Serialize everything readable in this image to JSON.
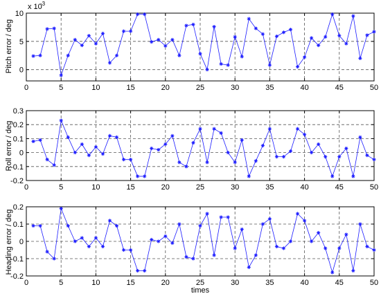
{
  "chart_data": [
    {
      "type": "line",
      "ylabel": "Pitch error / deg",
      "xlabel": "",
      "xlim": [
        0,
        50
      ],
      "ylim": [
        -0.002,
        0.01
      ],
      "multiplier_base": "x 10",
      "multiplier_exp": "-3",
      "xticks": [
        "0",
        "5",
        "10",
        "15",
        "20",
        "25",
        "30",
        "35",
        "40",
        "45",
        "50"
      ],
      "yticks": [
        {
          "v": 0.01,
          "label": "10"
        },
        {
          "v": 0.005,
          "label": "5"
        },
        {
          "v": 0,
          "label": "0"
        }
      ],
      "grid": "dashed",
      "marker": "asterisk",
      "color": "#1a1aff",
      "series": [
        {
          "values": [
            0.0024,
            0.0025,
            0.0072,
            0.0073,
            -0.001,
            0.0025,
            0.0053,
            0.0043,
            0.006,
            0.0046,
            0.0064,
            0.0012,
            0.0025,
            0.0068,
            0.0068,
            0.0098,
            0.0098,
            0.0049,
            0.0053,
            0.0042,
            0.0053,
            0.0025,
            0.0078,
            0.008,
            0.0028,
            0.0,
            0.0076,
            0.001,
            0.0008,
            0.0058,
            0.0023,
            0.009,
            0.0073,
            0.0063,
            0.0008,
            0.0059,
            0.0066,
            0.0071,
            0.0005,
            0.0022,
            0.0056,
            0.0043,
            0.0058,
            0.0098,
            0.006,
            0.0046,
            0.0095,
            0.002,
            0.0061,
            0.0067
          ]
        }
      ]
    },
    {
      "type": "line",
      "ylabel": "Roll error / deg",
      "xlabel": "",
      "xlim": [
        0,
        50
      ],
      "ylim": [
        -0.2,
        0.3
      ],
      "xticks": [
        "0",
        "5",
        "10",
        "15",
        "20",
        "25",
        "30",
        "35",
        "40",
        "45",
        "50"
      ],
      "yticks": [
        {
          "v": 0.3,
          "label": "0.3"
        },
        {
          "v": 0.2,
          "label": "0.2"
        },
        {
          "v": 0.1,
          "label": "0.1"
        },
        {
          "v": 0,
          "label": "0"
        },
        {
          "v": -0.1,
          "label": "-0.1"
        },
        {
          "v": -0.2,
          "label": "-0.2"
        }
      ],
      "grid": "dashed",
      "marker": "asterisk",
      "color": "#1a1aff",
      "series": [
        {
          "values": [
            0.08,
            0.09,
            -0.05,
            -0.09,
            0.23,
            0.11,
            0.0,
            0.06,
            -0.02,
            0.04,
            -0.01,
            0.12,
            0.11,
            -0.05,
            -0.05,
            -0.17,
            -0.17,
            0.03,
            0.02,
            0.06,
            0.12,
            -0.07,
            -0.1,
            0.07,
            0.17,
            -0.07,
            0.17,
            0.14,
            0.0,
            -0.07,
            0.09,
            -0.17,
            -0.06,
            0.05,
            0.17,
            -0.03,
            -0.03,
            0.01,
            0.17,
            0.13,
            0.0,
            0.06,
            -0.03,
            -0.17,
            -0.03,
            0.03,
            -0.17,
            0.11,
            -0.02,
            -0.05
          ]
        }
      ]
    },
    {
      "type": "line",
      "ylabel": "Heading error / deg",
      "xlabel": "times",
      "xlim": [
        0,
        50
      ],
      "ylim": [
        -0.2,
        0.2
      ],
      "xticks": [
        "0",
        "5",
        "10",
        "15",
        "20",
        "25",
        "30",
        "35",
        "40",
        "45",
        "50"
      ],
      "yticks": [
        {
          "v": 0.2,
          "label": "0.2"
        },
        {
          "v": 0.1,
          "label": "0.1"
        },
        {
          "v": 0,
          "label": "0"
        },
        {
          "v": -0.1,
          "label": "-0.1"
        },
        {
          "v": -0.2,
          "label": "-0.2"
        }
      ],
      "grid": "dashed",
      "marker": "asterisk",
      "color": "#1a1aff",
      "series": [
        {
          "values": [
            0.09,
            0.09,
            -0.06,
            -0.1,
            0.19,
            0.09,
            0.0,
            0.02,
            -0.03,
            0.02,
            -0.03,
            0.12,
            0.09,
            -0.05,
            -0.05,
            -0.17,
            -0.17,
            0.01,
            0.0,
            0.03,
            -0.01,
            0.1,
            -0.09,
            -0.1,
            0.09,
            0.16,
            -0.08,
            0.14,
            0.14,
            -0.04,
            0.07,
            -0.15,
            -0.08,
            0.1,
            0.13,
            -0.03,
            -0.04,
            0.0,
            0.16,
            0.12,
            0.0,
            0.05,
            -0.04,
            -0.18,
            -0.04,
            0.04,
            -0.17,
            0.1,
            -0.03,
            -0.05
          ]
        }
      ]
    }
  ]
}
